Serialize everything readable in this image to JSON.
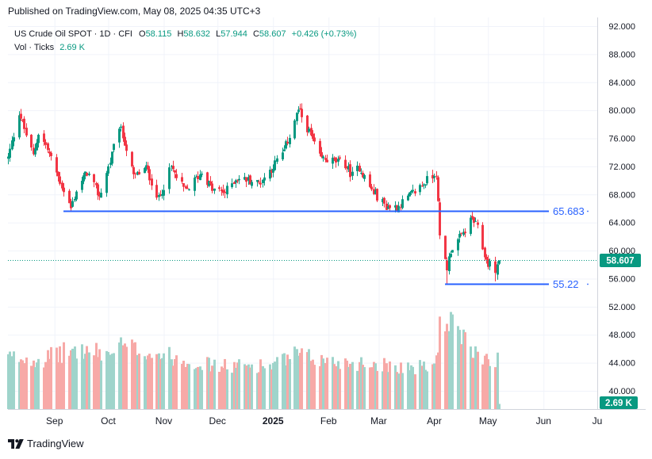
{
  "header": {
    "published_text": "Published on TradingView.com, May 08, 2025 04:35 UTC+3"
  },
  "legend": {
    "symbol": "US Crude Oil SPOT · 1D · CFI",
    "o_label": "O",
    "o_value": "58.115",
    "h_label": "H",
    "h_value": "58.632",
    "l_label": "L",
    "l_value": "57.944",
    "c_label": "C",
    "c_value": "58.607",
    "change": "+0.426 (+0.73%)",
    "vol_label": "Vol · Ticks",
    "vol_value": "2.69 K"
  },
  "branding": {
    "logo_text": "TradingView",
    "logo_icon": "tradingview-logo-icon"
  },
  "colors": {
    "up": "#089981",
    "down": "#f23645",
    "up_vol": "#9fd4cb",
    "down_vol": "#f7a9a7",
    "level_line": "#2962ff",
    "accent": "#089981"
  },
  "chart_data": {
    "type": "candlestick",
    "ylim": [
      38,
      94
    ],
    "y_ticks": [
      "92.000",
      "88.000",
      "84.000",
      "80.000",
      "76.000",
      "72.000",
      "68.000",
      "64.000",
      "60.000",
      "56.000",
      "52.000",
      "48.000",
      "44.000",
      "40.000"
    ],
    "y_tick_values": [
      92,
      88,
      84,
      80,
      76,
      72,
      68,
      64,
      60,
      56,
      52,
      48,
      44,
      40
    ],
    "x_ticks": [
      {
        "label": "Sep",
        "date": "2024-09-01"
      },
      {
        "label": "Oct",
        "date": "2024-10-01"
      },
      {
        "label": "Nov",
        "date": "2024-11-01"
      },
      {
        "label": "Dec",
        "date": "2024-12-01"
      },
      {
        "label": "2025",
        "date": "2025-01-01",
        "bold": true
      },
      {
        "label": "Feb",
        "date": "2025-02-01"
      },
      {
        "label": "Mar",
        "date": "2025-03-01"
      },
      {
        "label": "Apr",
        "date": "2025-04-01"
      },
      {
        "label": "May",
        "date": "2025-05-01"
      },
      {
        "label": "Jun",
        "date": "2025-06-01"
      },
      {
        "label": "Ju",
        "date": "2025-07-01"
      }
    ],
    "x_range": [
      "2024-08-06",
      "2025-07-01"
    ],
    "price_path": [
      [
        "2024-08-06",
        73.2
      ],
      [
        "2024-08-12",
        79.8
      ],
      [
        "2024-08-16",
        76.5
      ],
      [
        "2024-08-20",
        73.5
      ],
      [
        "2024-08-23",
        76.8
      ],
      [
        "2024-08-27",
        75.0
      ],
      [
        "2024-09-03",
        70.5
      ],
      [
        "2024-09-10",
        66.0
      ],
      [
        "2024-09-13",
        68.6
      ],
      [
        "2024-09-19",
        71.2
      ],
      [
        "2024-09-26",
        67.7
      ],
      [
        "2024-10-03",
        73.6
      ],
      [
        "2024-10-07",
        77.8
      ],
      [
        "2024-10-10",
        75.5
      ],
      [
        "2024-10-15",
        70.5
      ],
      [
        "2024-10-22",
        71.8
      ],
      [
        "2024-10-29",
        67.3
      ],
      [
        "2024-11-05",
        71.9
      ],
      [
        "2024-11-08",
        70.4
      ],
      [
        "2024-11-13",
        68.4
      ],
      [
        "2024-11-22",
        71.2
      ],
      [
        "2024-11-28",
        68.7
      ],
      [
        "2024-12-05",
        68.3
      ],
      [
        "2024-12-11",
        70.3
      ],
      [
        "2024-12-18",
        70.1
      ],
      [
        "2024-12-24",
        69.6
      ],
      [
        "2024-12-31",
        71.7
      ],
      [
        "2025-01-07",
        74.2
      ],
      [
        "2025-01-15",
        80.1
      ],
      [
        "2025-01-20",
        77.5
      ],
      [
        "2025-01-27",
        73.2
      ],
      [
        "2025-02-03",
        72.8
      ],
      [
        "2025-02-10",
        72.3
      ],
      [
        "2025-02-14",
        70.7
      ],
      [
        "2025-02-18",
        71.9
      ],
      [
        "2025-02-25",
        68.6
      ],
      [
        "2025-03-05",
        66.3
      ],
      [
        "2025-03-11",
        66.2
      ],
      [
        "2025-03-20",
        68.2
      ],
      [
        "2025-03-26",
        69.6
      ],
      [
        "2025-04-02",
        71.2
      ],
      [
        "2025-04-04",
        61.8
      ],
      [
        "2025-04-08",
        57.6
      ],
      [
        "2025-04-10",
        60.1
      ],
      [
        "2025-04-16",
        62.1
      ],
      [
        "2025-04-22",
        64.6
      ],
      [
        "2025-04-25",
        63.1
      ],
      [
        "2025-04-30",
        58.5
      ],
      [
        "2025-05-05",
        57.2
      ],
      [
        "2025-05-07",
        58.6
      ]
    ],
    "levels": [
      {
        "label": "65.683",
        "value": 65.683,
        "start": "2024-09-06"
      },
      {
        "label": "55.22",
        "value": 55.22,
        "start": "2025-04-07"
      }
    ],
    "last_price": {
      "label": "58.607",
      "value": 58.607
    },
    "volume": {
      "ylim": [
        0,
        8
      ],
      "last_label": "2.69 K",
      "path": [
        [
          "2024-08-06",
          4.1
        ],
        [
          "2024-08-26",
          4.0
        ],
        [
          "2024-09-10",
          4.7
        ],
        [
          "2024-10-01",
          4.4
        ],
        [
          "2024-10-08",
          5.0
        ],
        [
          "2024-11-01",
          4.3
        ],
        [
          "2024-12-01",
          3.4
        ],
        [
          "2025-01-01",
          3.5
        ],
        [
          "2025-01-13",
          4.3
        ],
        [
          "2025-02-01",
          3.8
        ],
        [
          "2025-03-01",
          3.6
        ],
        [
          "2025-03-20",
          3.3
        ],
        [
          "2025-04-01",
          3.4
        ],
        [
          "2025-04-04",
          6.4
        ],
        [
          "2025-04-08",
          7.2
        ],
        [
          "2025-04-15",
          5.8
        ],
        [
          "2025-04-22",
          4.6
        ],
        [
          "2025-05-01",
          4.1
        ],
        [
          "2025-05-06",
          4.0
        ],
        [
          "2025-05-07",
          0.4
        ]
      ]
    }
  }
}
